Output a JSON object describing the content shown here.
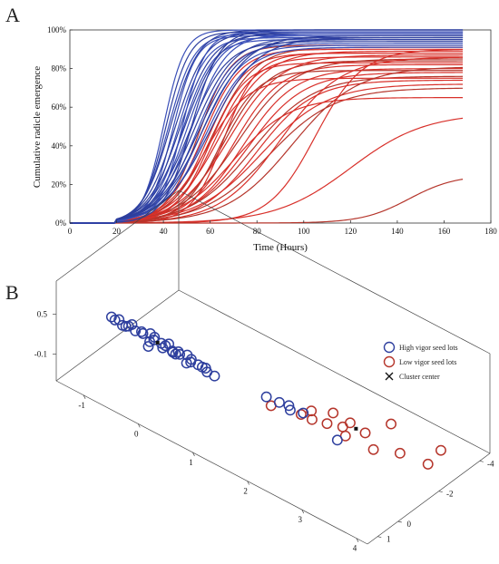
{
  "panel_a": {
    "label": "A"
  },
  "panel_b": {
    "label": "B"
  },
  "colors": {
    "high_vigor": "#2e3f9e",
    "low_vigor": "#b5352b",
    "high_alt": "#3a4fb8",
    "low_alt": "#d8302a"
  },
  "chart_data": [
    {
      "type": "line",
      "panel": "A",
      "xlabel": "Time (Hours)",
      "ylabel": "Cumulative radicle emergence",
      "xlim": [
        0,
        180
      ],
      "ylim": [
        0,
        100
      ],
      "x_ticks": [
        "0",
        "20",
        "40",
        "60",
        "80",
        "100",
        "120",
        "140",
        "160",
        "180"
      ],
      "y_ticks": [
        "0%",
        "20%",
        "40%",
        "60%",
        "80%",
        "100%"
      ],
      "x_range": [
        0,
        168
      ],
      "curve_model": "logistic: y = A / (1 + exp(-(t - t50) / s))",
      "high_vigor_series": [
        {
          "A": 100,
          "t50": 40,
          "s": 4.5
        },
        {
          "A": 99,
          "t50": 41,
          "s": 5
        },
        {
          "A": 98,
          "t50": 42,
          "s": 5.5
        },
        {
          "A": 100,
          "t50": 43,
          "s": 6
        },
        {
          "A": 97,
          "t50": 44,
          "s": 5
        },
        {
          "A": 99,
          "t50": 45,
          "s": 6.5
        },
        {
          "A": 96,
          "t50": 46,
          "s": 6
        },
        {
          "A": 98,
          "t50": 47,
          "s": 7
        },
        {
          "A": 95,
          "t50": 48,
          "s": 6.5
        },
        {
          "A": 99,
          "t50": 49,
          "s": 7.5
        },
        {
          "A": 97,
          "t50": 50,
          "s": 7
        },
        {
          "A": 94,
          "t50": 51,
          "s": 8
        },
        {
          "A": 98,
          "t50": 52,
          "s": 7.5
        },
        {
          "A": 96,
          "t50": 53,
          "s": 8.5
        },
        {
          "A": 93,
          "t50": 54,
          "s": 8
        },
        {
          "A": 95,
          "t50": 55,
          "s": 9
        },
        {
          "A": 92,
          "t50": 56,
          "s": 8.5
        },
        {
          "A": 97,
          "t50": 57,
          "s": 9.5
        },
        {
          "A": 99,
          "t50": 48,
          "s": 5
        },
        {
          "A": 100,
          "t50": 52,
          "s": 6
        },
        {
          "A": 91,
          "t50": 58,
          "s": 9
        },
        {
          "A": 96,
          "t50": 60,
          "s": 10
        }
      ],
      "low_vigor_series": [
        {
          "A": 92,
          "t50": 55,
          "s": 7
        },
        {
          "A": 90,
          "t50": 57,
          "s": 8
        },
        {
          "A": 88,
          "t50": 59,
          "s": 8
        },
        {
          "A": 91,
          "t50": 61,
          "s": 9
        },
        {
          "A": 86,
          "t50": 62,
          "s": 8.5
        },
        {
          "A": 89,
          "t50": 64,
          "s": 10
        },
        {
          "A": 84,
          "t50": 66,
          "s": 9.5
        },
        {
          "A": 87,
          "t50": 68,
          "s": 11
        },
        {
          "A": 82,
          "t50": 70,
          "s": 10
        },
        {
          "A": 85,
          "t50": 72,
          "s": 12
        },
        {
          "A": 80,
          "t50": 74,
          "s": 11
        },
        {
          "A": 78,
          "t50": 76,
          "s": 12
        },
        {
          "A": 76,
          "t50": 78,
          "s": 13
        },
        {
          "A": 74,
          "t50": 80,
          "s": 12
        },
        {
          "A": 72,
          "t50": 82,
          "s": 14
        },
        {
          "A": 70,
          "t50": 85,
          "s": 14
        },
        {
          "A": 88,
          "t50": 66,
          "s": 7
        },
        {
          "A": 83,
          "t50": 60,
          "s": 7.5
        },
        {
          "A": 79,
          "t50": 64,
          "s": 8
        },
        {
          "A": 75,
          "t50": 58,
          "s": 9
        },
        {
          "A": 86,
          "t50": 90,
          "s": 13
        },
        {
          "A": 81,
          "t50": 95,
          "s": 14
        },
        {
          "A": 90,
          "t50": 105,
          "s": 10
        },
        {
          "A": 57,
          "t50": 120,
          "s": 16
        },
        {
          "A": 25,
          "t50": 145,
          "s": 10
        },
        {
          "A": 65,
          "t50": 70,
          "s": 12
        }
      ]
    },
    {
      "type": "scatter",
      "panel": "B",
      "z_ticks": [
        "0.5",
        "-0.1"
      ],
      "x_ticks": [
        "-1",
        "0",
        "1",
        "2",
        "3",
        "4"
      ],
      "y_ticks": [
        "1",
        "0",
        "-2",
        "-4"
      ],
      "x_range": [
        -1.5,
        4.2
      ],
      "y_range": [
        -4.5,
        1.5
      ],
      "z_range": [
        -0.5,
        1.0
      ],
      "legend": {
        "entries": [
          "High vigor seed lots",
          "Low vigor seed lots",
          "Cluster center"
        ],
        "placement": "right"
      },
      "high_vigor_points": [
        [
          -0.6,
          1.2,
          0.78
        ],
        [
          -0.5,
          1.1,
          0.76
        ],
        [
          -0.4,
          1.2,
          0.74
        ],
        [
          -0.3,
          1.0,
          0.75
        ],
        [
          -0.2,
          1.1,
          0.72
        ],
        [
          -0.1,
          1.0,
          0.7
        ],
        [
          0.0,
          0.9,
          0.72
        ],
        [
          0.1,
          1.0,
          0.69
        ],
        [
          0.2,
          0.9,
          0.66
        ],
        [
          0.3,
          0.8,
          0.67
        ],
        [
          0.4,
          0.9,
          0.63
        ],
        [
          0.5,
          0.8,
          0.6
        ],
        [
          0.6,
          0.7,
          0.61
        ],
        [
          0.7,
          0.8,
          0.57
        ],
        [
          0.8,
          0.7,
          0.55
        ],
        [
          0.9,
          0.6,
          0.52
        ],
        [
          -0.4,
          0.9,
          0.66
        ],
        [
          -0.2,
          0.8,
          0.64
        ],
        [
          0.0,
          0.7,
          0.62
        ],
        [
          0.2,
          0.7,
          0.58
        ],
        [
          0.4,
          0.6,
          0.55
        ],
        [
          0.6,
          0.5,
          0.5
        ],
        [
          0.8,
          0.5,
          0.47
        ],
        [
          -0.5,
          1.3,
          0.8
        ],
        [
          -0.3,
          1.3,
          0.79
        ],
        [
          0.1,
          1.2,
          0.71
        ],
        [
          0.3,
          1.1,
          0.68
        ],
        [
          0.5,
          1.0,
          0.65
        ],
        [
          0.7,
          1.0,
          0.6
        ],
        [
          1.0,
          0.8,
          0.55
        ],
        [
          1.1,
          0.7,
          0.51
        ],
        [
          1.9,
          0.3,
          0.45
        ],
        [
          2.1,
          0.2,
          0.43
        ],
        [
          2.3,
          0.2,
          0.4
        ],
        [
          2.5,
          0.1,
          0.42
        ],
        [
          2.2,
          0.0,
          0.38
        ],
        [
          3.2,
          0.3,
          0.36
        ],
        [
          0.0,
          1.0,
          0.55
        ],
        [
          0.3,
          0.6,
          0.5
        ]
      ],
      "low_vigor_points": [
        [
          2.4,
          -0.6,
          0.12
        ],
        [
          2.6,
          -0.8,
          0.1
        ],
        [
          2.2,
          -1.1,
          0.05
        ],
        [
          2.7,
          -1.3,
          -0.02
        ],
        [
          3.0,
          -1.6,
          -0.05
        ],
        [
          2.9,
          -0.9,
          0.02
        ],
        [
          3.3,
          -1.2,
          -0.08
        ],
        [
          1.5,
          -1.0,
          -0.15
        ],
        [
          1.9,
          -1.4,
          -0.2
        ],
        [
          2.3,
          -1.9,
          -0.12
        ],
        [
          3.6,
          -1.7,
          -0.12
        ],
        [
          4.0,
          -2.0,
          -0.18
        ],
        [
          2.5,
          -2.2,
          -0.25
        ],
        [
          3.1,
          -2.6,
          -0.1
        ],
        [
          3.9,
          -2.9,
          -0.22
        ]
      ],
      "cluster_centers": [
        [
          0.15,
          0.95,
          0.66
        ],
        [
          2.85,
          -1.55,
          -0.04
        ]
      ]
    }
  ]
}
